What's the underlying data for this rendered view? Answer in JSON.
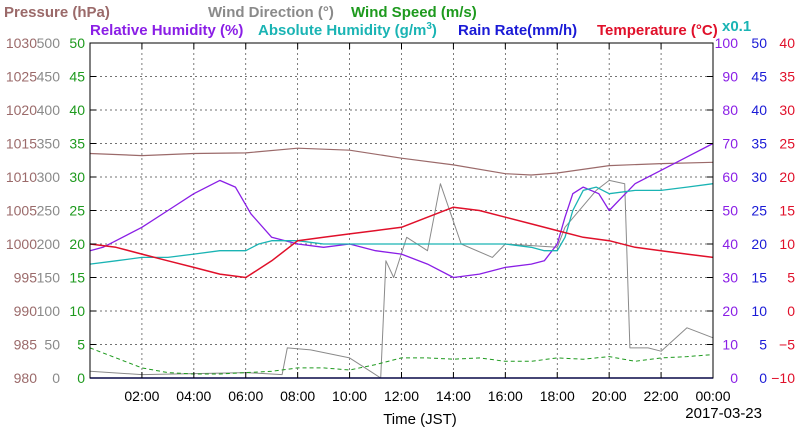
{
  "chart_data": {
    "type": "line",
    "xlabel": "Time (JST)",
    "date_label": "2017-03-23",
    "x_ticks": [
      "02:00",
      "04:00",
      "06:00",
      "08:00",
      "10:00",
      "12:00",
      "14:00",
      "16:00",
      "18:00",
      "20:00",
      "22:00",
      "00:00"
    ],
    "x_range_hours": [
      0,
      24
    ],
    "grid": true,
    "legend": [
      {
        "name": "Pressure (hPa)",
        "color": "#9b6a6a"
      },
      {
        "name": "Wind Direction (°)",
        "color": "#8a8a8a"
      },
      {
        "name": "Wind Speed (m/s)",
        "color": "#1e9a1e"
      },
      {
        "name": "Relative Humidity (%)",
        "color": "#8a1ee6"
      },
      {
        "name": "Absolute Humidity (g/m",
        "sup": "3",
        "suffix": ")",
        "color": "#1ab4b4"
      },
      {
        "name": "Rain Rate(mm/h)",
        "color": "#1a1ad6"
      },
      {
        "name": "Temperature (°C)",
        "color": "#e0102a"
      },
      {
        "name": "x0.1",
        "color": "#1ab4b4"
      }
    ],
    "axes": {
      "pressure": {
        "range": [
          980,
          1030
        ],
        "ticks": [
          "1030",
          "1025",
          "1020",
          "1015",
          "1010",
          "1005",
          "1000",
          "995",
          "990",
          "985",
          "980"
        ],
        "color": "#9b6a6a"
      },
      "wind_direction": {
        "range": [
          0,
          500
        ],
        "ticks": [
          "500",
          "450",
          "400",
          "350",
          "300",
          "250",
          "200",
          "150",
          "100",
          "50",
          "0"
        ],
        "color": "#8a8a8a"
      },
      "wind_speed": {
        "range": [
          0,
          50
        ],
        "ticks": [
          "50",
          "45",
          "40",
          "35",
          "30",
          "25",
          "20",
          "15",
          "10",
          "5",
          "0"
        ],
        "color": "#1e9a1e"
      },
      "relative_humidity": {
        "range": [
          0,
          100
        ],
        "ticks": [
          "100",
          "90",
          "80",
          "70",
          "60",
          "50",
          "40",
          "30",
          "20",
          "10",
          "0"
        ],
        "color": "#8a1ee6"
      },
      "rain_rate": {
        "range": [
          0,
          50
        ],
        "ticks": [
          "50",
          "45",
          "40",
          "35",
          "30",
          "25",
          "20",
          "15",
          "10",
          "5",
          "0"
        ],
        "color": "#1a1ad6"
      },
      "temperature": {
        "range": [
          -10,
          40
        ],
        "ticks": [
          "40",
          "35",
          "30",
          "25",
          "20",
          "15",
          "10",
          "5",
          "0",
          "−5",
          "−10"
        ],
        "color": "#e0102a"
      }
    },
    "series": [
      {
        "name": "Pressure (hPa)",
        "axis": "pressure",
        "x": [
          0,
          2,
          4,
          6,
          8,
          10,
          12,
          14,
          16,
          17,
          18,
          20,
          22,
          24
        ],
        "values": [
          1013.5,
          1013.2,
          1013.5,
          1013.6,
          1014.3,
          1014.0,
          1012.8,
          1011.8,
          1010.5,
          1010.3,
          1010.6,
          1011.7,
          1012.0,
          1012.2
        ]
      },
      {
        "name": "Wind Direction (°)",
        "axis": "wind_direction",
        "x": [
          0,
          2,
          6,
          7.4,
          7.6,
          8.5,
          10,
          10.8,
          11.2,
          11.4,
          11.7,
          12.2,
          13.0,
          13.5,
          14.3,
          15.5,
          16,
          18,
          18.3,
          19.5,
          20,
          20.6,
          20.8,
          21.5,
          22,
          23,
          24
        ],
        "values": [
          10,
          5,
          8,
          5,
          45,
          42,
          30,
          10,
          0,
          175,
          150,
          210,
          190,
          290,
          200,
          180,
          200,
          195,
          225,
          280,
          295,
          290,
          45,
          45,
          40,
          75,
          60
        ]
      },
      {
        "name": "Wind Speed (m/s)",
        "axis": "wind_speed",
        "x": [
          0,
          1,
          2,
          3,
          4,
          5,
          6,
          7,
          8,
          9,
          10,
          11,
          12,
          13,
          14,
          15,
          16,
          17,
          18,
          19,
          20,
          21,
          22,
          23,
          24
        ],
        "values": [
          4.5,
          3.0,
          1.5,
          0.8,
          0.6,
          0.6,
          0.8,
          1.0,
          1.5,
          1.5,
          1.2,
          2.0,
          3.0,
          3.0,
          2.8,
          3.0,
          2.5,
          2.5,
          3.0,
          2.8,
          3.2,
          2.5,
          3.0,
          3.2,
          3.5
        ]
      },
      {
        "name": "Relative Humidity (%)",
        "axis": "relative_humidity",
        "x": [
          0,
          0.5,
          1,
          2,
          3,
          4,
          5,
          5.6,
          6.2,
          7,
          8,
          9,
          10,
          11,
          12,
          13,
          14,
          15,
          16,
          17,
          17.5,
          18,
          18.3,
          18.6,
          19,
          19.6,
          20,
          20.5,
          21,
          22,
          23,
          24
        ],
        "values": [
          38,
          39,
          41,
          45,
          50,
          55,
          59,
          57,
          49,
          42,
          40,
          39,
          40,
          38,
          37,
          34,
          30,
          31,
          33,
          34,
          35,
          40,
          48,
          55,
          57,
          55,
          50,
          54,
          58,
          62,
          66,
          70
        ]
      },
      {
        "name": "Absolute Humidity (g/m³)",
        "axis": "relative_humidity",
        "x": [
          0,
          1,
          2,
          3,
          4,
          5,
          6,
          6.5,
          7,
          8,
          9,
          10,
          11,
          12,
          13,
          14,
          15,
          16,
          17,
          17.5,
          18,
          18.3,
          18.6,
          19,
          19.5,
          20,
          21,
          22,
          23,
          24
        ],
        "values": [
          34,
          35,
          36,
          36,
          37,
          38,
          38,
          40,
          41,
          41,
          40,
          40,
          40,
          40,
          40,
          40,
          40,
          40,
          39,
          38,
          38,
          42,
          50,
          56,
          57,
          55,
          56,
          56,
          57,
          58
        ]
      },
      {
        "name": "Rain Rate(mm/h)",
        "axis": "rain_rate",
        "x": [
          0,
          24
        ],
        "values": [
          0,
          0
        ]
      },
      {
        "name": "Temperature (°C)",
        "axis": "temperature",
        "x": [
          0,
          1,
          2,
          3,
          4,
          5,
          6,
          7,
          8,
          9,
          10,
          11,
          12,
          13,
          14,
          15,
          16,
          17,
          18,
          19,
          20,
          21,
          22,
          23,
          24
        ],
        "values": [
          10.0,
          9.5,
          8.5,
          7.5,
          6.5,
          5.5,
          5.0,
          7.5,
          10.5,
          11.0,
          11.5,
          12.0,
          12.5,
          14.0,
          15.5,
          15.0,
          14.0,
          13.0,
          12.0,
          11.0,
          10.5,
          9.5,
          9.0,
          8.5,
          8.0
        ]
      }
    ]
  }
}
